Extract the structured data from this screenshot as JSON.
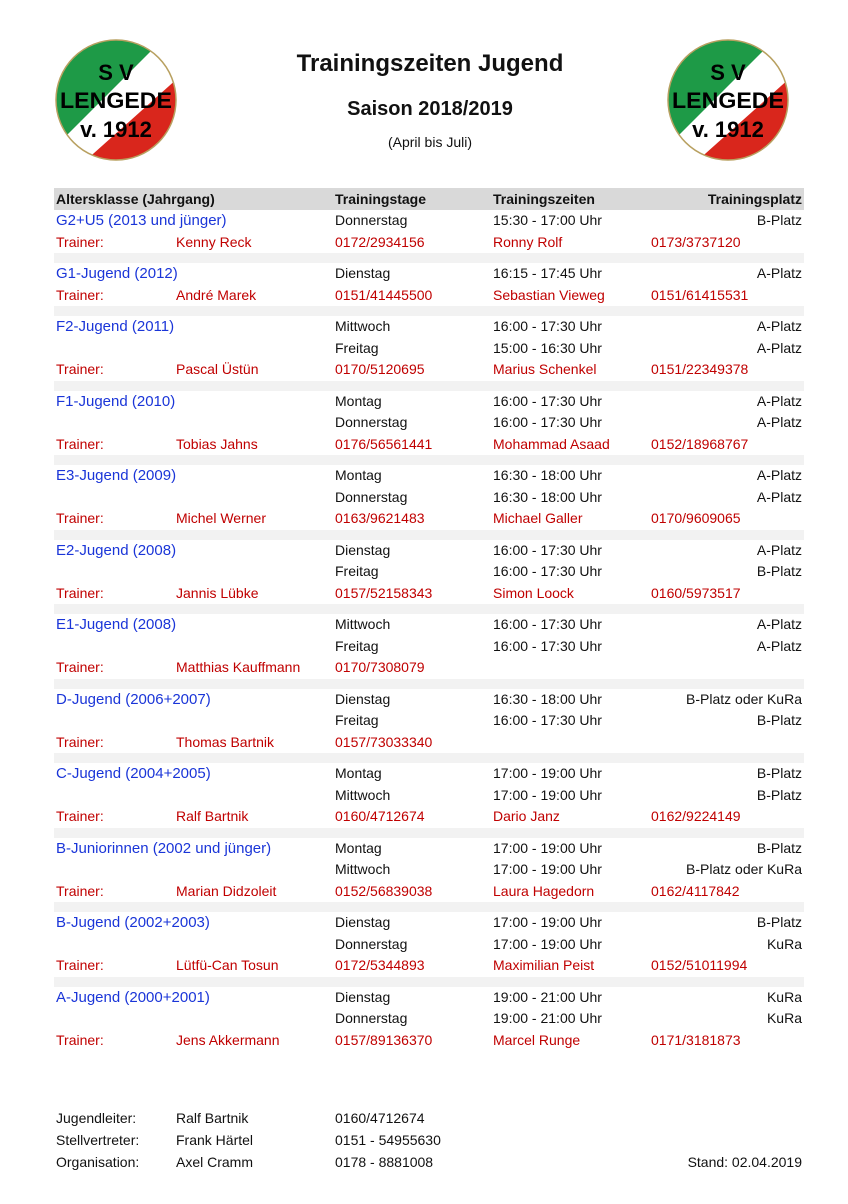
{
  "logo": {
    "line1": "S V",
    "line2": "LENGEDE",
    "line3": "v. 1912",
    "colors": {
      "green": "#1e9a47",
      "red": "#d9261c",
      "white": "#ffffff"
    }
  },
  "header": {
    "title": "Trainingszeiten Jugend",
    "season": "Saison 2018/2019",
    "period": "(April bis Juli)"
  },
  "table": {
    "columns": [
      "Altersklasse (Jahrgang)",
      "Trainingstage",
      "Trainingszeiten",
      "Trainingsplatz"
    ],
    "trainer_label": "Trainer:",
    "groups": [
      {
        "name": "G2+U5 (2013 und jünger)",
        "sessions": [
          {
            "day": "Donnerstag",
            "time": "15:30 - 17:00 Uhr",
            "place": "B-Platz"
          }
        ],
        "trainer": "Kenny Reck",
        "phone": "0172/2934156",
        "co_trainer": "Ronny Rolf",
        "co_phone": "0173/3737120"
      },
      {
        "name": "G1-Jugend (2012)",
        "sessions": [
          {
            "day": "Dienstag",
            "time": "16:15 - 17:45 Uhr",
            "place": "A-Platz"
          }
        ],
        "trainer": "André Marek",
        "phone": "0151/41445500",
        "co_trainer": "Sebastian Vieweg",
        "co_phone": "0151/61415531"
      },
      {
        "name": "F2-Jugend (2011)",
        "sessions": [
          {
            "day": "Mittwoch",
            "time": "16:00 - 17:30 Uhr",
            "place": "A-Platz"
          },
          {
            "day": "Freitag",
            "time": "15:00 - 16:30 Uhr",
            "place": "A-Platz"
          }
        ],
        "trainer": "Pascal Üstün",
        "phone": "0170/5120695",
        "co_trainer": "Marius Schenkel",
        "co_phone": "0151/22349378"
      },
      {
        "name": "F1-Jugend (2010)",
        "sessions": [
          {
            "day": "Montag",
            "time": "16:00 - 17:30 Uhr",
            "place": "A-Platz"
          },
          {
            "day": "Donnerstag",
            "time": "16:00 - 17:30 Uhr",
            "place": "A-Platz"
          }
        ],
        "trainer": "Tobias Jahns",
        "phone": "0176/56561441",
        "co_trainer": "Mohammad Asaad",
        "co_phone": "0152/18968767"
      },
      {
        "name": "E3-Jugend (2009)",
        "sessions": [
          {
            "day": "Montag",
            "time": "16:30 - 18:00 Uhr",
            "place": "A-Platz"
          },
          {
            "day": "Donnerstag",
            "time": "16:30 - 18:00 Uhr",
            "place": "A-Platz"
          }
        ],
        "trainer": "Michel Werner",
        "phone": "0163/9621483",
        "co_trainer": "Michael Galler",
        "co_phone": "0170/9609065"
      },
      {
        "name": "E2-Jugend (2008)",
        "sessions": [
          {
            "day": "Dienstag",
            "time": "16:00 - 17:30 Uhr",
            "place": "A-Platz"
          },
          {
            "day": "Freitag",
            "time": "16:00 - 17:30 Uhr",
            "place": "B-Platz"
          }
        ],
        "trainer": "Jannis Lübke",
        "phone": "0157/52158343",
        "co_trainer": "Simon Loock",
        "co_phone": "0160/5973517"
      },
      {
        "name": "E1-Jugend (2008)",
        "sessions": [
          {
            "day": "Mittwoch",
            "time": "16:00 - 17:30 Uhr",
            "place": "A-Platz"
          },
          {
            "day": "Freitag",
            "time": "16:00 - 17:30 Uhr",
            "place": "A-Platz"
          }
        ],
        "trainer": "Matthias Kauffmann",
        "phone": "0170/7308079",
        "co_trainer": "",
        "co_phone": ""
      },
      {
        "name": "D-Jugend (2006+2007)",
        "sessions": [
          {
            "day": "Dienstag",
            "time": "16:30 - 18:00 Uhr",
            "place": "B-Platz oder KuRa"
          },
          {
            "day": "Freitag",
            "time": "16:00 - 17:30 Uhr",
            "place": "B-Platz"
          }
        ],
        "trainer": "Thomas Bartnik",
        "phone": "0157/73033340",
        "co_trainer": "",
        "co_phone": ""
      },
      {
        "name": "C-Jugend (2004+2005)",
        "sessions": [
          {
            "day": "Montag",
            "time": "17:00 - 19:00 Uhr",
            "place": "B-Platz"
          },
          {
            "day": "Mittwoch",
            "time": "17:00 - 19:00 Uhr",
            "place": "B-Platz"
          }
        ],
        "trainer": "Ralf Bartnik",
        "phone": "0160/4712674",
        "co_trainer": "Dario Janz",
        "co_phone": "0162/9224149"
      },
      {
        "name": "B-Juniorinnen (2002 und jünger)",
        "sessions": [
          {
            "day": "Montag",
            "time": "17:00 - 19:00 Uhr",
            "place": "B-Platz"
          },
          {
            "day": "Mittwoch",
            "time": "17:00 - 19:00 Uhr",
            "place": "B-Platz oder KuRa"
          }
        ],
        "trainer": "Marian Didzoleit",
        "phone": "0152/56839038",
        "co_trainer": "Laura Hagedorn",
        "co_phone": "0162/4117842"
      },
      {
        "name": "B-Jugend (2002+2003)",
        "sessions": [
          {
            "day": "Dienstag",
            "time": "17:00 - 19:00 Uhr",
            "place": "B-Platz"
          },
          {
            "day": "Donnerstag",
            "time": "17:00 - 19:00 Uhr",
            "place": "KuRa"
          }
        ],
        "trainer": "Lütfü-Can Tosun",
        "phone": "0172/5344893",
        "co_trainer": "Maximilian Peist",
        "co_phone": "0152/51011994"
      },
      {
        "name": "A-Jugend (2000+2001)",
        "sessions": [
          {
            "day": "Dienstag",
            "time": "19:00 - 21:00 Uhr",
            "place": "KuRa"
          },
          {
            "day": "Donnerstag",
            "time": "19:00 - 21:00 Uhr",
            "place": "KuRa"
          }
        ],
        "trainer": "Jens Akkermann",
        "phone": "0157/89136370",
        "co_trainer": "Marcel Runge",
        "co_phone": "0171/3181873"
      }
    ]
  },
  "footer": {
    "contacts": [
      {
        "role": "Jugendleiter:",
        "name": "Ralf Bartnik",
        "phone": "0160/4712674"
      },
      {
        "role": "Stellvertreter:",
        "name": "Frank Härtel",
        "phone": "0151 - 54955630"
      },
      {
        "role": "Organisation:",
        "name": "Axel Cramm",
        "phone": "0178 - 8881008"
      }
    ],
    "stand": "Stand: 02.04.2019"
  }
}
